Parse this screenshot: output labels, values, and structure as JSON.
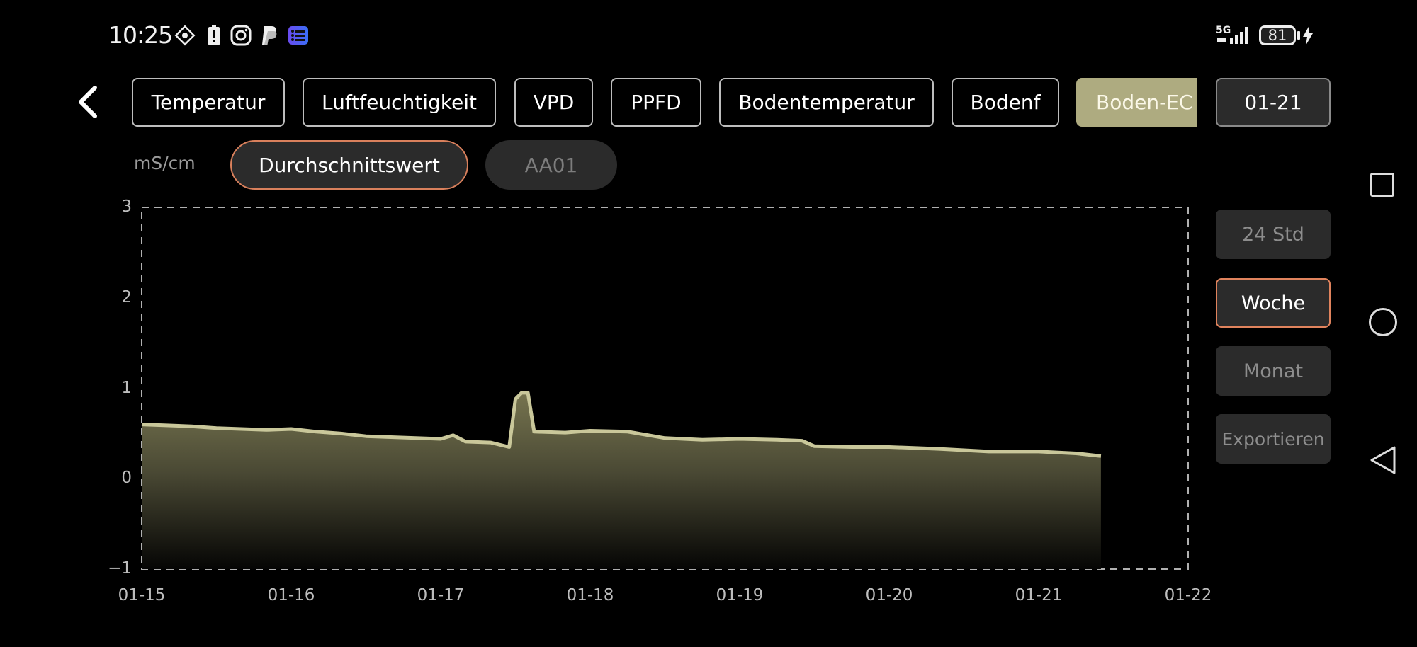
{
  "status_bar": {
    "time": "10:25",
    "icons": [
      "app-diamond-icon",
      "battery-alert-icon",
      "instagram-icon",
      "paypal-icon",
      "list-app-icon"
    ],
    "network": "5G",
    "battery_level": "81",
    "charging": true
  },
  "header": {
    "back_icon": "chevron-left-icon",
    "tabs": [
      {
        "label": "Temperatur"
      },
      {
        "label": "Luftfeuchtigkeit"
      },
      {
        "label": "VPD"
      },
      {
        "label": "PPFD"
      },
      {
        "label": "Bodentemperatur"
      },
      {
        "label": "Bodenf"
      },
      {
        "label": "Boden-EC",
        "active": true
      }
    ],
    "date_button": "01-21"
  },
  "filters": {
    "unit": "mS/cm",
    "options": [
      {
        "label": "Durchschnittswert",
        "selected": true
      },
      {
        "label": "AA01",
        "selected": false
      }
    ]
  },
  "range_buttons": [
    {
      "label": "24 Std",
      "selected": false
    },
    {
      "label": "Woche",
      "selected": true
    },
    {
      "label": "Monat",
      "selected": false
    },
    {
      "label": "Exportieren",
      "selected": false
    }
  ],
  "colors": {
    "accent": "#aeab80",
    "line": "#c9c79a",
    "selected_border": "#e0835d",
    "button_bg": "#2b2b2b"
  },
  "chart_data": {
    "type": "area",
    "xlabel": "",
    "ylabel": "mS/cm",
    "ylim": [
      -1,
      3
    ],
    "yticks": [
      "3",
      "2",
      "1",
      "0",
      "-1"
    ],
    "xticks": [
      "01-15",
      "01-16",
      "01-17",
      "01-18",
      "01-19",
      "01-20",
      "01-21",
      "01-22"
    ],
    "grid": false,
    "points": [
      [
        "01-15 00:00",
        0.6
      ],
      [
        "01-15 04:00",
        0.59
      ],
      [
        "01-15 08:00",
        0.58
      ],
      [
        "01-15 12:00",
        0.56
      ],
      [
        "01-15 16:00",
        0.55
      ],
      [
        "01-15 20:00",
        0.54
      ],
      [
        "01-16 00:00",
        0.55
      ],
      [
        "01-16 04:00",
        0.52
      ],
      [
        "01-16 08:00",
        0.5
      ],
      [
        "01-16 12:00",
        0.47
      ],
      [
        "01-16 16:00",
        0.46
      ],
      [
        "01-16 20:00",
        0.45
      ],
      [
        "01-17 00:00",
        0.44
      ],
      [
        "01-17 02:00",
        0.48
      ],
      [
        "01-17 04:00",
        0.41
      ],
      [
        "01-17 08:00",
        0.4
      ],
      [
        "01-17 11:00",
        0.35
      ],
      [
        "01-17 12:00",
        0.88
      ],
      [
        "01-17 13:00",
        0.95
      ],
      [
        "01-17 14:00",
        0.95
      ],
      [
        "01-17 15:00",
        0.52
      ],
      [
        "01-17 20:00",
        0.51
      ],
      [
        "01-18 00:00",
        0.53
      ],
      [
        "01-18 06:00",
        0.52
      ],
      [
        "01-18 12:00",
        0.45
      ],
      [
        "01-18 18:00",
        0.43
      ],
      [
        "01-19 00:00",
        0.44
      ],
      [
        "01-19 06:00",
        0.43
      ],
      [
        "01-19 10:00",
        0.42
      ],
      [
        "01-19 12:00",
        0.36
      ],
      [
        "01-19 18:00",
        0.35
      ],
      [
        "01-20 00:00",
        0.35
      ],
      [
        "01-20 08:00",
        0.33
      ],
      [
        "01-20 16:00",
        0.3
      ],
      [
        "01-21 00:00",
        0.3
      ],
      [
        "01-21 06:00",
        0.28
      ],
      [
        "01-21 10:00",
        0.25
      ]
    ]
  },
  "nav_bar": {
    "icons": [
      "recents-square-icon",
      "home-circle-icon",
      "back-triangle-icon"
    ]
  }
}
